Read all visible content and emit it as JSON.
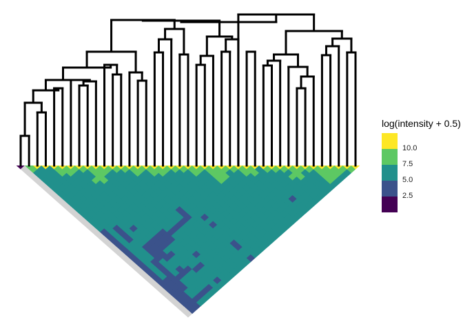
{
  "chart_data": {
    "type": "heatmap",
    "layout": "triangular heatmap (upper triangle rotated 45 degrees) with dendrogram above",
    "n_leaves": 41,
    "dendrogram": {
      "line_color": "#000000",
      "merges": [
        [
          0,
          1,
          4.3
        ],
        [
          2,
          3,
          7.7
        ],
        [
          "m0",
          "m1",
          9.1
        ],
        [
          4,
          5,
          11.2
        ],
        [
          "m2",
          "m3",
          10.9
        ],
        [
          7,
          8,
          11.6
        ],
        [
          "m5",
          9,
          12.2
        ],
        [
          6,
          "m6",
          12.4
        ],
        [
          "m4",
          "m7",
          12.4
        ],
        [
          11,
          12,
          13.2
        ],
        [
          10,
          "m9",
          14.6
        ],
        [
          "m8",
          "m10",
          14.2
        ],
        [
          14,
          15,
          12.3
        ],
        [
          13,
          "m12",
          13.5
        ],
        [
          "m11",
          "m13",
          16.5
        ],
        [
          16,
          17,
          16.4
        ],
        [
          "m15",
          18,
          18.3
        ],
        [
          19,
          20,
          16.1
        ],
        [
          "m16",
          "m17",
          19.8
        ],
        [
          "m14",
          "m18",
          21.1
        ],
        [
          21,
          22,
          14.6
        ],
        [
          "m20",
          23,
          15.9
        ],
        [
          24,
          25,
          16.5
        ],
        [
          "m22",
          26,
          18.3
        ],
        [
          "m21",
          "m23",
          18.7
        ],
        [
          "m19",
          "m24",
          21.0
        ],
        [
          27,
          28,
          16.5
        ],
        [
          29,
          30,
          14.5
        ],
        [
          "m27",
          31,
          15.2
        ],
        [
          33,
          34,
          11.2
        ],
        [
          "m29",
          35,
          12.9
        ],
        [
          32,
          "m30",
          14.3
        ],
        [
          "m28",
          "m31",
          16.1
        ],
        [
          36,
          37,
          16.0
        ],
        [
          "m33",
          38,
          17.3
        ],
        [
          39,
          40,
          16.4
        ],
        [
          "m34",
          "m35",
          18.4
        ],
        [
          "m32",
          "m36",
          19.5
        ],
        [
          26,
          "m37",
          21.9
        ],
        [
          "m25",
          "m38",
          20.8
        ]
      ]
    },
    "heatmap": {
      "default_value": 6.5,
      "diagonal_value": 10.8,
      "na_color": "#D3D3D3",
      "na_cells": "row of leaf 0 (all pairs with leaf 0)",
      "near_diagonal_value": 8.5,
      "cells": [
        [
          0,
          0,
          1.5
        ],
        [
          1,
          1,
          8.5
        ],
        [
          2,
          3,
          6.5
        ],
        [
          3,
          4,
          6.5
        ],
        [
          28,
          29,
          6.5
        ],
        [
          4,
          6,
          8.5
        ],
        [
          5,
          7,
          8.5
        ],
        [
          8,
          10,
          8.5
        ],
        [
          9,
          11,
          8.5
        ],
        [
          8,
          11,
          8.5
        ],
        [
          8,
          12,
          8.5
        ],
        [
          7,
          11,
          8.5
        ],
        [
          13,
          15,
          8.5
        ],
        [
          15,
          17,
          8.5
        ],
        [
          16,
          18,
          8.5
        ],
        [
          20,
          22,
          8.5
        ],
        [
          22,
          24,
          8.5
        ],
        [
          23,
          25,
          8.5
        ],
        [
          22,
          25,
          8.5
        ],
        [
          23,
          26,
          8.5
        ],
        [
          22,
          26,
          8.5
        ],
        [
          26,
          28,
          8.5
        ],
        [
          27,
          29,
          8.5
        ],
        [
          32,
          34,
          8.5
        ],
        [
          31,
          34,
          8.5
        ],
        [
          32,
          35,
          8.5
        ],
        [
          35,
          37,
          8.5
        ],
        [
          36,
          38,
          8.5
        ],
        [
          37,
          39,
          8.5
        ],
        [
          35,
          38,
          8.5
        ],
        [
          36,
          39,
          8.5
        ],
        [
          35,
          39,
          8.5
        ],
        [
          1,
          19,
          4
        ],
        [
          1,
          20,
          4
        ],
        [
          1,
          21,
          4
        ],
        [
          1,
          22,
          4
        ],
        [
          1,
          23,
          4
        ],
        [
          1,
          24,
          4
        ],
        [
          1,
          25,
          4
        ],
        [
          1,
          26,
          4
        ],
        [
          1,
          27,
          4
        ],
        [
          1,
          28,
          4
        ],
        [
          1,
          29,
          4
        ],
        [
          1,
          30,
          4
        ],
        [
          1,
          31,
          4
        ],
        [
          1,
          32,
          4
        ],
        [
          1,
          33,
          4
        ],
        [
          1,
          34,
          4
        ],
        [
          1,
          35,
          4
        ],
        [
          1,
          36,
          4
        ],
        [
          1,
          37,
          4
        ],
        [
          1,
          38,
          4
        ],
        [
          1,
          39,
          4
        ],
        [
          1,
          40,
          4
        ],
        [
          2,
          33,
          4
        ],
        [
          2,
          34,
          4
        ],
        [
          2,
          35,
          4
        ],
        [
          2,
          36,
          4
        ],
        [
          2,
          37,
          4
        ],
        [
          2,
          38,
          4
        ],
        [
          2,
          39,
          4
        ],
        [
          2,
          40,
          4
        ],
        [
          3,
          20,
          4
        ],
        [
          3,
          21,
          4
        ],
        [
          3,
          22,
          4
        ],
        [
          3,
          23,
          4
        ],
        [
          5,
          22,
          4
        ],
        [
          3,
          29,
          4
        ],
        [
          3,
          30,
          4
        ],
        [
          3,
          31,
          4
        ],
        [
          3,
          32,
          4
        ],
        [
          3,
          33,
          4
        ],
        [
          3,
          34,
          4
        ],
        [
          3,
          35,
          4
        ],
        [
          3,
          36,
          4
        ],
        [
          4,
          26,
          4
        ],
        [
          5,
          26,
          4
        ],
        [
          6,
          26,
          4
        ],
        [
          7,
          26,
          4
        ],
        [
          8,
          26,
          4
        ],
        [
          4,
          27,
          4
        ],
        [
          5,
          27,
          4
        ],
        [
          6,
          27,
          4
        ],
        [
          7,
          27,
          4
        ],
        [
          8,
          27,
          4
        ],
        [
          9,
          27,
          4
        ],
        [
          10,
          27,
          4
        ],
        [
          11,
          27,
          4
        ],
        [
          12,
          27,
          4
        ],
        [
          13,
          27,
          4
        ],
        [
          4,
          28,
          4
        ],
        [
          5,
          28,
          4
        ],
        [
          6,
          28,
          4
        ],
        [
          7,
          28,
          4
        ],
        [
          8,
          28,
          4
        ],
        [
          4,
          29,
          4
        ],
        [
          5,
          29,
          4
        ],
        [
          13,
          25,
          4
        ],
        [
          13,
          26,
          4
        ],
        [
          5,
          30,
          4
        ],
        [
          6,
          30,
          4
        ],
        [
          5,
          33,
          4
        ],
        [
          5,
          34,
          4
        ],
        [
          6,
          34,
          4
        ],
        [
          4,
          34,
          4
        ],
        [
          9,
          33,
          4
        ],
        [
          7,
          35,
          4
        ],
        [
          8,
          35,
          4
        ],
        [
          8,
          39,
          4
        ],
        [
          3,
          39,
          4
        ],
        [
          4,
          39,
          4
        ],
        [
          5,
          39,
          4
        ],
        [
          6,
          39,
          4
        ],
        [
          15,
          29,
          4
        ],
        [
          15,
          31,
          4
        ],
        [
          28,
          37,
          4
        ],
        [
          15,
          36,
          4
        ],
        [
          15,
          37,
          4
        ],
        [
          15,
          40,
          4
        ]
      ]
    },
    "legend": {
      "title": "log(intensity + 0.5)",
      "position": "right",
      "bins": [
        {
          "color": "#FDE725",
          "range": [
            10.0,
            12.5
          ]
        },
        {
          "color": "#5DC863",
          "range": [
            7.5,
            10.0
          ]
        },
        {
          "color": "#21908C",
          "range": [
            5.0,
            7.5
          ]
        },
        {
          "color": "#3B528B",
          "range": [
            2.5,
            5.0
          ]
        },
        {
          "color": "#440154",
          "range": [
            0,
            2.5
          ]
        }
      ],
      "labels": [
        "10.0",
        "7.5",
        "5.0",
        "2.5"
      ]
    }
  }
}
